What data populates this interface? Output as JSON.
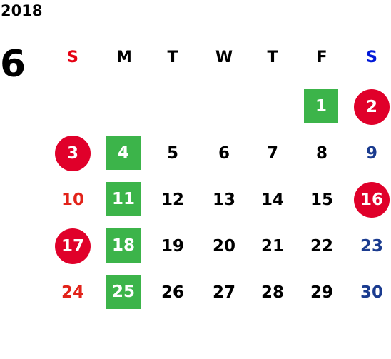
{
  "year": "2018",
  "month": "6",
  "weekdays": [
    {
      "text": "S",
      "color": "#e50012"
    },
    {
      "text": "M",
      "color": "#000000"
    },
    {
      "text": "T",
      "color": "#000000"
    },
    {
      "text": "W",
      "color": "#000000"
    },
    {
      "text": "T",
      "color": "#000000"
    },
    {
      "text": "F",
      "color": "#000000"
    },
    {
      "text": "S",
      "color": "#0018d8"
    }
  ],
  "weeks": [
    [
      null,
      null,
      null,
      null,
      null,
      {
        "text": "1",
        "color": "#ffffff",
        "background": "#3cb44a",
        "shape": "square"
      },
      {
        "text": "2",
        "color": "#ffffff",
        "background": "#e0002a",
        "shape": "circle"
      }
    ],
    [
      {
        "text": "3",
        "color": "#ffffff",
        "background": "#e0002a",
        "shape": "circle"
      },
      {
        "text": "4",
        "color": "#ffffff",
        "background": "#3cb44a",
        "shape": "square"
      },
      {
        "text": "5",
        "color": "#000000"
      },
      {
        "text": "6",
        "color": "#000000"
      },
      {
        "text": "7",
        "color": "#000000"
      },
      {
        "text": "8",
        "color": "#000000"
      },
      {
        "text": "9",
        "color": "#1a3b8f"
      }
    ],
    [
      {
        "text": "10",
        "color": "#e2231a"
      },
      {
        "text": "11",
        "color": "#ffffff",
        "background": "#3cb44a",
        "shape": "square"
      },
      {
        "text": "12",
        "color": "#000000"
      },
      {
        "text": "13",
        "color": "#000000"
      },
      {
        "text": "14",
        "color": "#000000"
      },
      {
        "text": "15",
        "color": "#000000"
      },
      {
        "text": "16",
        "color": "#ffffff",
        "background": "#e0002a",
        "shape": "circle"
      }
    ],
    [
      {
        "text": "17",
        "color": "#ffffff",
        "background": "#e0002a",
        "shape": "circle"
      },
      {
        "text": "18",
        "color": "#ffffff",
        "background": "#3cb44a",
        "shape": "square"
      },
      {
        "text": "19",
        "color": "#000000"
      },
      {
        "text": "20",
        "color": "#000000"
      },
      {
        "text": "21",
        "color": "#000000"
      },
      {
        "text": "22",
        "color": "#000000"
      },
      {
        "text": "23",
        "color": "#1a3b8f"
      }
    ],
    [
      {
        "text": "24",
        "color": "#e2231a"
      },
      {
        "text": "25",
        "color": "#ffffff",
        "background": "#3cb44a",
        "shape": "square"
      },
      {
        "text": "26",
        "color": "#000000"
      },
      {
        "text": "27",
        "color": "#000000"
      },
      {
        "text": "28",
        "color": "#000000"
      },
      {
        "text": "29",
        "color": "#000000"
      },
      {
        "text": "30",
        "color": "#1a3b8f"
      }
    ]
  ]
}
